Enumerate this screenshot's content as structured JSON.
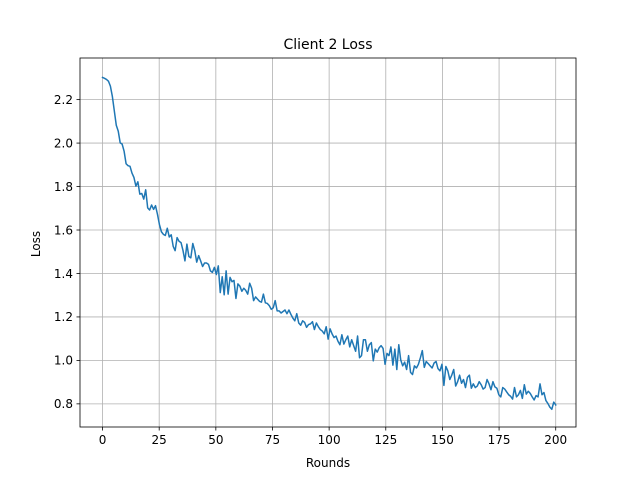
{
  "chart_data": {
    "type": "line",
    "title": "Client 2 Loss",
    "xlabel": "Rounds",
    "ylabel": "Loss",
    "xlim": [
      -9.95,
      208.95
    ],
    "ylim": [
      0.6935,
      2.3915
    ],
    "xticks": [
      0,
      25,
      50,
      75,
      100,
      125,
      150,
      175,
      200
    ],
    "yticks": [
      0.8,
      1.0,
      1.2,
      1.4,
      1.6,
      1.8,
      2.0,
      2.2
    ],
    "ytick_labels": [
      "0.8",
      "1.0",
      "1.2",
      "1.4",
      "1.6",
      "1.8",
      "2.0",
      "2.2"
    ],
    "grid": true,
    "line_color": "#1f77b4",
    "grid_color": "#b0b0b0",
    "series": [
      {
        "values": [
          2.302,
          2.298,
          2.293,
          2.285,
          2.262,
          2.215,
          2.148,
          2.082,
          2.055,
          2.001,
          1.995,
          1.962,
          1.905,
          1.896,
          1.893,
          1.862,
          1.842,
          1.802,
          1.822,
          1.765,
          1.768,
          1.742,
          1.785,
          1.702,
          1.692,
          1.715,
          1.695,
          1.712,
          1.672,
          1.625,
          1.592,
          1.58,
          1.575,
          1.608,
          1.568,
          1.578,
          1.525,
          1.505,
          1.565,
          1.548,
          1.542,
          1.506,
          1.458,
          1.535,
          1.478,
          1.472,
          1.538,
          1.505,
          1.452,
          1.482,
          1.458,
          1.432,
          1.448,
          1.448,
          1.442,
          1.412,
          1.405,
          1.428,
          1.395,
          1.435,
          1.312,
          1.385,
          1.302,
          1.412,
          1.305,
          1.382,
          1.362,
          1.368,
          1.285,
          1.352,
          1.342,
          1.318,
          1.332,
          1.322,
          1.305,
          1.355,
          1.332,
          1.275,
          1.292,
          1.282,
          1.272,
          1.268,
          1.305,
          1.265,
          1.262,
          1.252,
          1.235,
          1.242,
          1.275,
          1.228,
          1.228,
          1.218,
          1.225,
          1.232,
          1.215,
          1.232,
          1.212,
          1.195,
          1.182,
          1.215,
          1.172,
          1.162,
          1.182,
          1.175,
          1.152,
          1.165,
          1.168,
          1.178,
          1.142,
          1.172,
          1.155,
          1.142,
          1.135,
          1.122,
          1.155,
          1.098,
          1.145,
          1.122,
          1.105,
          1.112,
          1.088,
          1.072,
          1.118,
          1.075,
          1.095,
          1.112,
          1.062,
          1.095,
          1.068,
          1.042,
          1.112,
          1.012,
          1.022,
          1.095,
          1.095,
          1.042,
          1.072,
          1.082,
          0.998,
          1.052,
          1.038,
          1.058,
          1.068,
          1.055,
          0.982,
          1.032,
          1.022,
          1.062,
          0.978,
          1.052,
          0.958,
          1.072,
          1.002,
          0.975,
          0.992,
          0.958,
          1.022,
          0.945,
          0.935,
          0.975,
          0.965,
          0.982,
          1.012,
          1.045,
          0.968,
          0.995,
          0.985,
          0.975,
          0.965,
          0.988,
          0.995,
          0.962,
          0.952,
          0.982,
          0.885,
          0.972,
          0.952,
          0.912,
          0.932,
          0.958,
          0.882,
          0.902,
          0.932,
          0.895,
          0.912,
          0.875,
          0.922,
          0.932,
          0.872,
          0.892,
          0.875,
          0.882,
          0.902,
          0.888,
          0.868,
          0.875,
          0.912,
          0.892,
          0.865,
          0.902,
          0.878,
          0.872,
          0.842,
          0.832,
          0.875,
          0.868,
          0.855,
          0.842,
          0.835,
          0.822,
          0.875,
          0.832,
          0.842,
          0.862,
          0.825,
          0.888,
          0.845,
          0.858,
          0.848,
          0.832,
          0.818,
          0.838,
          0.832,
          0.892,
          0.842,
          0.852,
          0.815,
          0.802,
          0.785,
          0.775,
          0.808,
          0.795
        ]
      }
    ]
  }
}
